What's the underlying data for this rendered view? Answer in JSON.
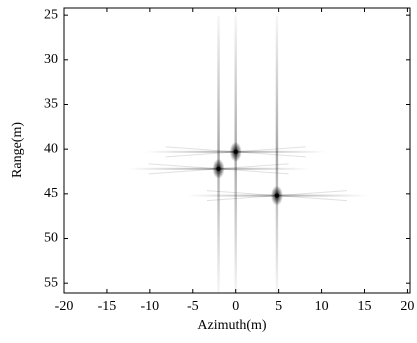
{
  "chart_data": {
    "type": "point-targets",
    "x_label": "Azimuth(m)",
    "y_label": "Range(m)",
    "x": [
      0,
      -2,
      4.8
    ],
    "y": [
      40.3,
      42.2,
      45.2
    ],
    "color": "#000000",
    "xlim": [
      -20,
      20.3
    ],
    "ylim": [
      24.2,
      56.1
    ],
    "y_inverted": true,
    "xticks": [
      -20,
      -15,
      -10,
      -5,
      0,
      5,
      10,
      15,
      20
    ],
    "yticks": [
      25,
      30,
      35,
      40,
      45,
      50,
      55
    ]
  }
}
